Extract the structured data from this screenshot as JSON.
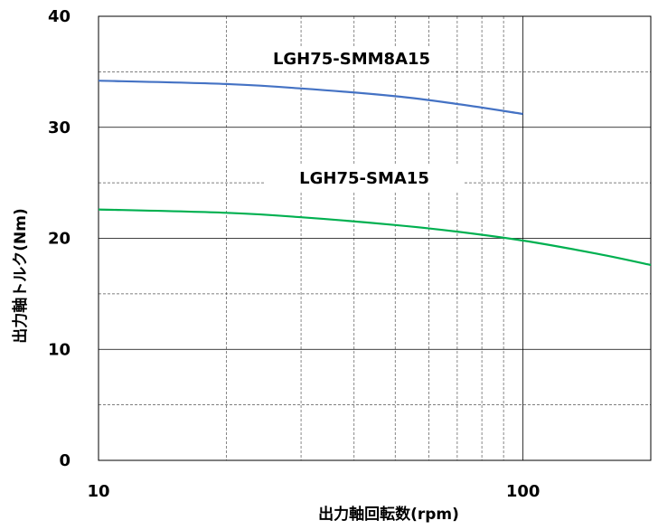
{
  "chart_data": {
    "type": "line",
    "xscale": "log",
    "xlim": [
      10,
      200
    ],
    "ylim": [
      0,
      40
    ],
    "xticks": [
      10,
      100
    ],
    "yticks": [
      0,
      10,
      20,
      30,
      40
    ],
    "xlabel": "出力軸回転数(rpm)",
    "ylabel": "出力軸トルク(Nm)",
    "grid": true,
    "series": [
      {
        "name": "LGH75-SMM8A15",
        "color": "#4472C4",
        "x": [
          10,
          20,
          30,
          50,
          70,
          100
        ],
        "y": [
          34.2,
          33.9,
          33.5,
          32.8,
          32.1,
          31.2
        ]
      },
      {
        "name": "LGH75-SMA15",
        "color": "#00B050",
        "x": [
          10,
          20,
          30,
          50,
          70,
          100,
          150,
          200
        ],
        "y": [
          22.6,
          22.3,
          21.9,
          21.2,
          20.6,
          19.8,
          18.6,
          17.6
        ]
      }
    ]
  }
}
